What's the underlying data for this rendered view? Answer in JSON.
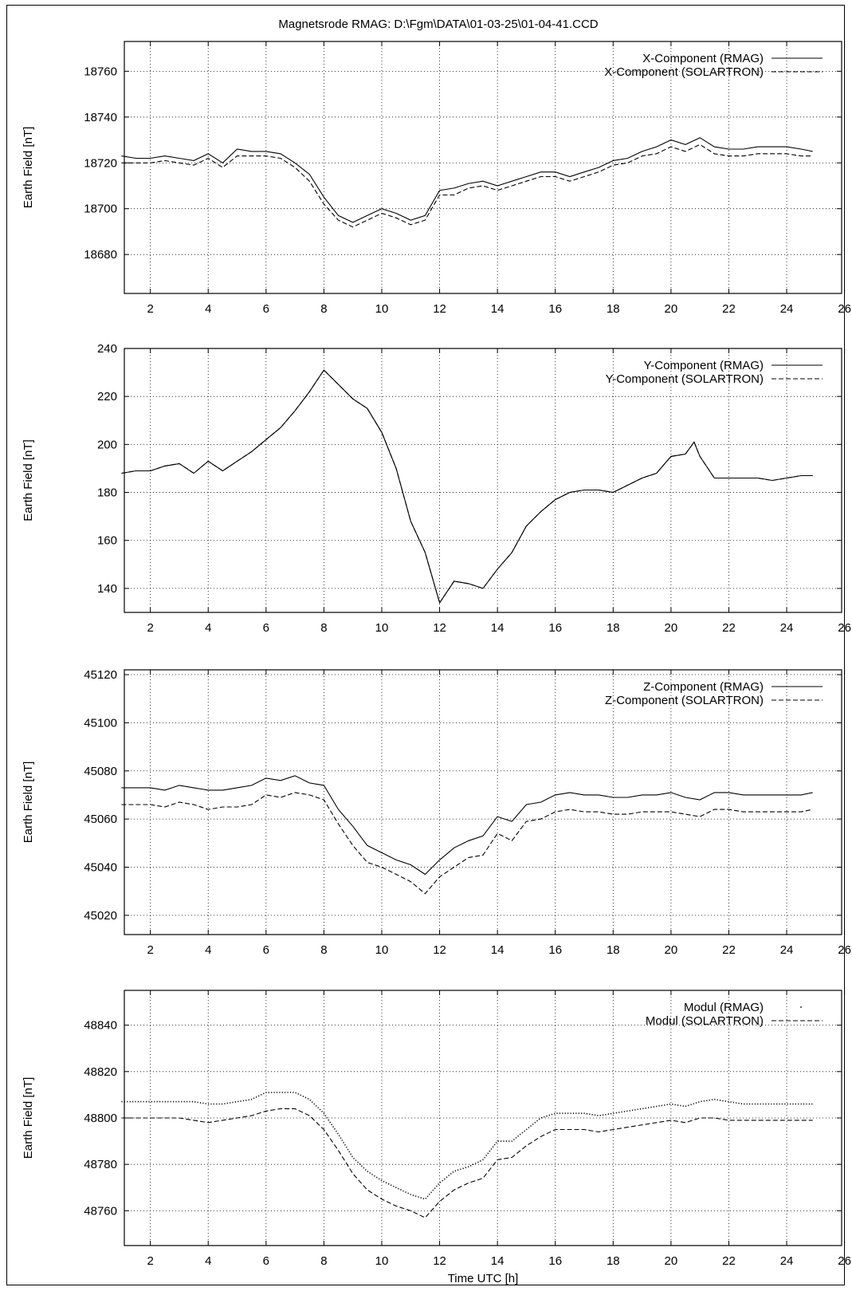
{
  "page_title": "Magnetsrode RMAG: D:\\Fgm\\DATA\\01-03-25\\01-04-41.CCD",
  "chart_data": [
    {
      "type": "line",
      "title": "",
      "xlabel": "",
      "ylabel": "Earth Field [nT]",
      "xlim": [
        1.1,
        25.9
      ],
      "ylim": [
        18663,
        18773
      ],
      "xticks": [
        2,
        4,
        6,
        8,
        10,
        12,
        14,
        16,
        18,
        20,
        22,
        24,
        26
      ],
      "yticks": [
        18680,
        18700,
        18720,
        18740,
        18760
      ],
      "grid": true,
      "legend": "top-right",
      "series": [
        {
          "name": "X-Component (RMAG)",
          "style": "solid",
          "x": [
            1,
            1.5,
            2,
            2.5,
            3,
            3.5,
            4,
            4.5,
            5,
            5.5,
            6,
            6.5,
            7,
            7.5,
            8,
            8.5,
            9,
            9.5,
            10,
            10.5,
            11,
            11.5,
            12,
            12.5,
            13,
            13.5,
            14,
            14.5,
            15,
            15.5,
            16,
            16.5,
            17,
            17.5,
            18,
            18.5,
            19,
            19.5,
            20,
            20.5,
            21,
            21.5,
            22,
            22.5,
            23,
            23.5,
            24,
            24.5,
            24.9
          ],
          "y": [
            18723,
            18722,
            18722,
            18723,
            18722,
            18721,
            18724,
            18720,
            18726,
            18725,
            18725,
            18724,
            18720,
            18715,
            18705,
            18697,
            18694,
            18697,
            18700,
            18698,
            18695,
            18697,
            18708,
            18709,
            18711,
            18712,
            18710,
            18712,
            18714,
            18716,
            18716,
            18714,
            18716,
            18718,
            18721,
            18722,
            18725,
            18727,
            18730,
            18728,
            18731,
            18727,
            18726,
            18726,
            18727,
            18727,
            18727,
            18726,
            18725
          ]
        },
        {
          "name": "X-Component (SOLARTRON)",
          "style": "dashed",
          "x": [
            1,
            1.5,
            2,
            2.5,
            3,
            3.5,
            4,
            4.5,
            5,
            5.5,
            6,
            6.5,
            7,
            7.5,
            8,
            8.5,
            9,
            9.5,
            10,
            10.5,
            11,
            11.5,
            12,
            12.5,
            13,
            13.5,
            14,
            14.5,
            15,
            15.5,
            16,
            16.5,
            17,
            17.5,
            18,
            18.5,
            19,
            19.5,
            20,
            20.5,
            21,
            21.5,
            22,
            22.5,
            23,
            23.5,
            24,
            24.5,
            24.9
          ],
          "y": [
            18720,
            18720,
            18720,
            18721,
            18720,
            18719,
            18722,
            18718,
            18723,
            18723,
            18723,
            18722,
            18718,
            18712,
            18702,
            18695,
            18692,
            18695,
            18698,
            18696,
            18693,
            18695,
            18706,
            18706,
            18709,
            18710,
            18708,
            18710,
            18712,
            18714,
            18714,
            18712,
            18714,
            18716,
            18719,
            18720,
            18723,
            18724,
            18727,
            18725,
            18728,
            18724,
            18723,
            18723,
            18724,
            18724,
            18724,
            18723,
            18723
          ]
        }
      ]
    },
    {
      "type": "line",
      "title": "",
      "xlabel": "",
      "ylabel": "Earth Field [nT]",
      "xlim": [
        1.1,
        25.9
      ],
      "ylim": [
        130,
        240
      ],
      "xticks": [
        2,
        4,
        6,
        8,
        10,
        12,
        14,
        16,
        18,
        20,
        22,
        24,
        26
      ],
      "yticks": [
        140,
        160,
        180,
        200,
        220,
        240
      ],
      "grid": true,
      "legend": "top-right",
      "series": [
        {
          "name": "Y-Component (RMAG)",
          "style": "solid",
          "x": [
            1,
            1.5,
            2,
            2.5,
            3,
            3.5,
            4,
            4.5,
            5,
            5.5,
            6,
            6.5,
            7,
            7.5,
            8,
            8.5,
            9,
            9.5,
            10,
            10.5,
            11,
            11.5,
            12,
            12.5,
            13,
            13.5,
            14,
            14.5,
            15,
            15.5,
            16,
            16.5,
            17,
            17.5,
            18,
            18.5,
            19,
            19.5,
            20,
            20.5,
            20.8,
            21,
            21.5,
            22,
            22.5,
            23,
            23.5,
            24,
            24.5,
            24.9
          ],
          "y": [
            188,
            189,
            189,
            191,
            192,
            188,
            193,
            189,
            193,
            197,
            202,
            207,
            214,
            222,
            231,
            225,
            219,
            215,
            205,
            190,
            168,
            155,
            134,
            143,
            142,
            140,
            148,
            155,
            166,
            172,
            177,
            180,
            181,
            181,
            180,
            183,
            186,
            188,
            195,
            196,
            201,
            195,
            186,
            186,
            186,
            186,
            185,
            186,
            187,
            187
          ]
        },
        {
          "name": "Y-Component (SOLARTRON)",
          "style": "dashed",
          "x": [
            1,
            1.5,
            2,
            2.5,
            3,
            3.5,
            4,
            4.5,
            5,
            5.5,
            6,
            6.5,
            7,
            7.5,
            8,
            8.5,
            9,
            9.5,
            10,
            10.5,
            11,
            11.5,
            12,
            12.5,
            13,
            13.5,
            14,
            14.5,
            15,
            15.5,
            16,
            16.5,
            17,
            17.5,
            18,
            18.5,
            19,
            19.5,
            20,
            20.5,
            20.8,
            21,
            21.5,
            22,
            22.5,
            23,
            23.5,
            24,
            24.5,
            24.9
          ],
          "y": [
            188,
            189,
            189,
            191,
            192,
            188,
            193,
            189,
            193,
            197,
            202,
            207,
            214,
            222,
            231,
            225,
            219,
            215,
            205,
            190,
            168,
            155,
            134,
            143,
            142,
            140,
            148,
            155,
            166,
            172,
            177,
            180,
            181,
            181,
            180,
            183,
            186,
            188,
            195,
            196,
            201,
            195,
            186,
            186,
            186,
            186,
            185,
            186,
            187,
            187
          ]
        }
      ]
    },
    {
      "type": "line",
      "title": "",
      "xlabel": "",
      "ylabel": "Earth Field [nT]",
      "xlim": [
        1.1,
        25.9
      ],
      "ylim": [
        45012,
        45122
      ],
      "xticks": [
        2,
        4,
        6,
        8,
        10,
        12,
        14,
        16,
        18,
        20,
        22,
        24,
        26
      ],
      "yticks": [
        45020,
        45040,
        45060,
        45080,
        45100,
        45120
      ],
      "grid": true,
      "legend": "top-right",
      "series": [
        {
          "name": "Z-Component (RMAG)",
          "style": "solid",
          "x": [
            1,
            1.5,
            2,
            2.5,
            3,
            3.5,
            4,
            4.5,
            5,
            5.5,
            6,
            6.5,
            7,
            7.5,
            8,
            8.5,
            9,
            9.5,
            10,
            10.5,
            11,
            11.5,
            12,
            12.5,
            13,
            13.5,
            14,
            14.5,
            15,
            15.5,
            16,
            16.5,
            17,
            17.5,
            18,
            18.5,
            19,
            19.5,
            20,
            20.5,
            21,
            21.5,
            22,
            22.5,
            23,
            23.5,
            24,
            24.5,
            24.9
          ],
          "y": [
            45073,
            45073,
            45073,
            45072,
            45074,
            45073,
            45072,
            45072,
            45073,
            45074,
            45077,
            45076,
            45078,
            45075,
            45074,
            45064,
            45057,
            45049,
            45046,
            45043,
            45041,
            45037,
            45043,
            45048,
            45051,
            45053,
            45061,
            45059,
            45066,
            45067,
            45070,
            45071,
            45070,
            45070,
            45069,
            45069,
            45070,
            45070,
            45071,
            45069,
            45068,
            45071,
            45071,
            45070,
            45070,
            45070,
            45070,
            45070,
            45071
          ]
        },
        {
          "name": "Z-Component (SOLARTRON)",
          "style": "dashed",
          "x": [
            1,
            1.5,
            2,
            2.5,
            3,
            3.5,
            4,
            4.5,
            5,
            5.5,
            6,
            6.5,
            7,
            7.5,
            8,
            8.5,
            9,
            9.5,
            10,
            10.5,
            11,
            11.5,
            12,
            12.5,
            13,
            13.5,
            14,
            14.5,
            15,
            15.5,
            16,
            16.5,
            17,
            17.5,
            18,
            18.5,
            19,
            19.5,
            20,
            20.5,
            21,
            21.5,
            22,
            22.5,
            23,
            23.5,
            24,
            24.5,
            24.9
          ],
          "y": [
            45066,
            45066,
            45066,
            45065,
            45067,
            45066,
            45064,
            45065,
            45065,
            45066,
            45070,
            45069,
            45071,
            45070,
            45068,
            45058,
            45049,
            45042,
            45040,
            45037,
            45034,
            45029,
            45036,
            45040,
            45044,
            45045,
            45054,
            45051,
            45059,
            45060,
            45063,
            45064,
            45063,
            45063,
            45062,
            45062,
            45063,
            45063,
            45063,
            45062,
            45061,
            45064,
            45064,
            45063,
            45063,
            45063,
            45063,
            45063,
            45064
          ]
        }
      ]
    },
    {
      "type": "line",
      "title": "",
      "xlabel": "Time UTC [h]",
      "ylabel": "Earth Field [nT]",
      "xlim": [
        1.1,
        25.9
      ],
      "ylim": [
        48745,
        48855
      ],
      "xticks": [
        2,
        4,
        6,
        8,
        10,
        12,
        14,
        16,
        18,
        20,
        22,
        24,
        26
      ],
      "yticks": [
        48760,
        48780,
        48800,
        48820,
        48840
      ],
      "grid": true,
      "legend": "top-right",
      "series": [
        {
          "name": "Modul (RMAG)",
          "style": "dotted",
          "x": [
            1,
            1.5,
            2,
            2.5,
            3,
            3.5,
            4,
            4.5,
            5,
            5.5,
            6,
            6.5,
            7,
            7.5,
            8,
            8.5,
            9,
            9.5,
            10,
            10.5,
            11,
            11.5,
            12,
            12.5,
            13,
            13.5,
            14,
            14.5,
            15,
            15.5,
            16,
            16.5,
            17,
            17.5,
            18,
            18.5,
            19,
            19.5,
            20,
            20.5,
            21,
            21.5,
            22,
            22.5,
            23,
            23.5,
            24,
            24.5,
            24.9
          ],
          "y": [
            48807,
            48807,
            48807,
            48807,
            48807,
            48807,
            48806,
            48806,
            48807,
            48808,
            48811,
            48811,
            48811,
            48808,
            48802,
            48793,
            48783,
            48777,
            48773,
            48770,
            48767,
            48765,
            48772,
            48777,
            48779,
            48782,
            48790,
            48790,
            48795,
            48800,
            48802,
            48802,
            48802,
            48801,
            48802,
            48803,
            48804,
            48805,
            48806,
            48805,
            48807,
            48808,
            48807,
            48806,
            48806,
            48806,
            48806,
            48806,
            48806
          ]
        },
        {
          "name": "Modul (SOLARTRON)",
          "style": "dashed",
          "x": [
            1,
            1.5,
            2,
            2.5,
            3,
            3.5,
            4,
            4.5,
            5,
            5.5,
            6,
            6.5,
            7,
            7.5,
            8,
            8.5,
            9,
            9.5,
            10,
            10.5,
            11,
            11.5,
            12,
            12.5,
            13,
            13.5,
            14,
            14.5,
            15,
            15.5,
            16,
            16.5,
            17,
            17.5,
            18,
            18.5,
            19,
            19.5,
            20,
            20.5,
            21,
            21.5,
            22,
            22.5,
            23,
            23.5,
            24,
            24.5,
            24.9
          ],
          "y": [
            48800,
            48800,
            48800,
            48800,
            48800,
            48799,
            48798,
            48799,
            48800,
            48801,
            48803,
            48804,
            48804,
            48801,
            48795,
            48786,
            48776,
            48769,
            48765,
            48762,
            48760,
            48757,
            48764,
            48769,
            48772,
            48774,
            48782,
            48783,
            48788,
            48792,
            48795,
            48795,
            48795,
            48794,
            48795,
            48796,
            48797,
            48798,
            48799,
            48798,
            48800,
            48800,
            48799,
            48799,
            48799,
            48799,
            48799,
            48799,
            48799
          ]
        }
      ]
    }
  ]
}
